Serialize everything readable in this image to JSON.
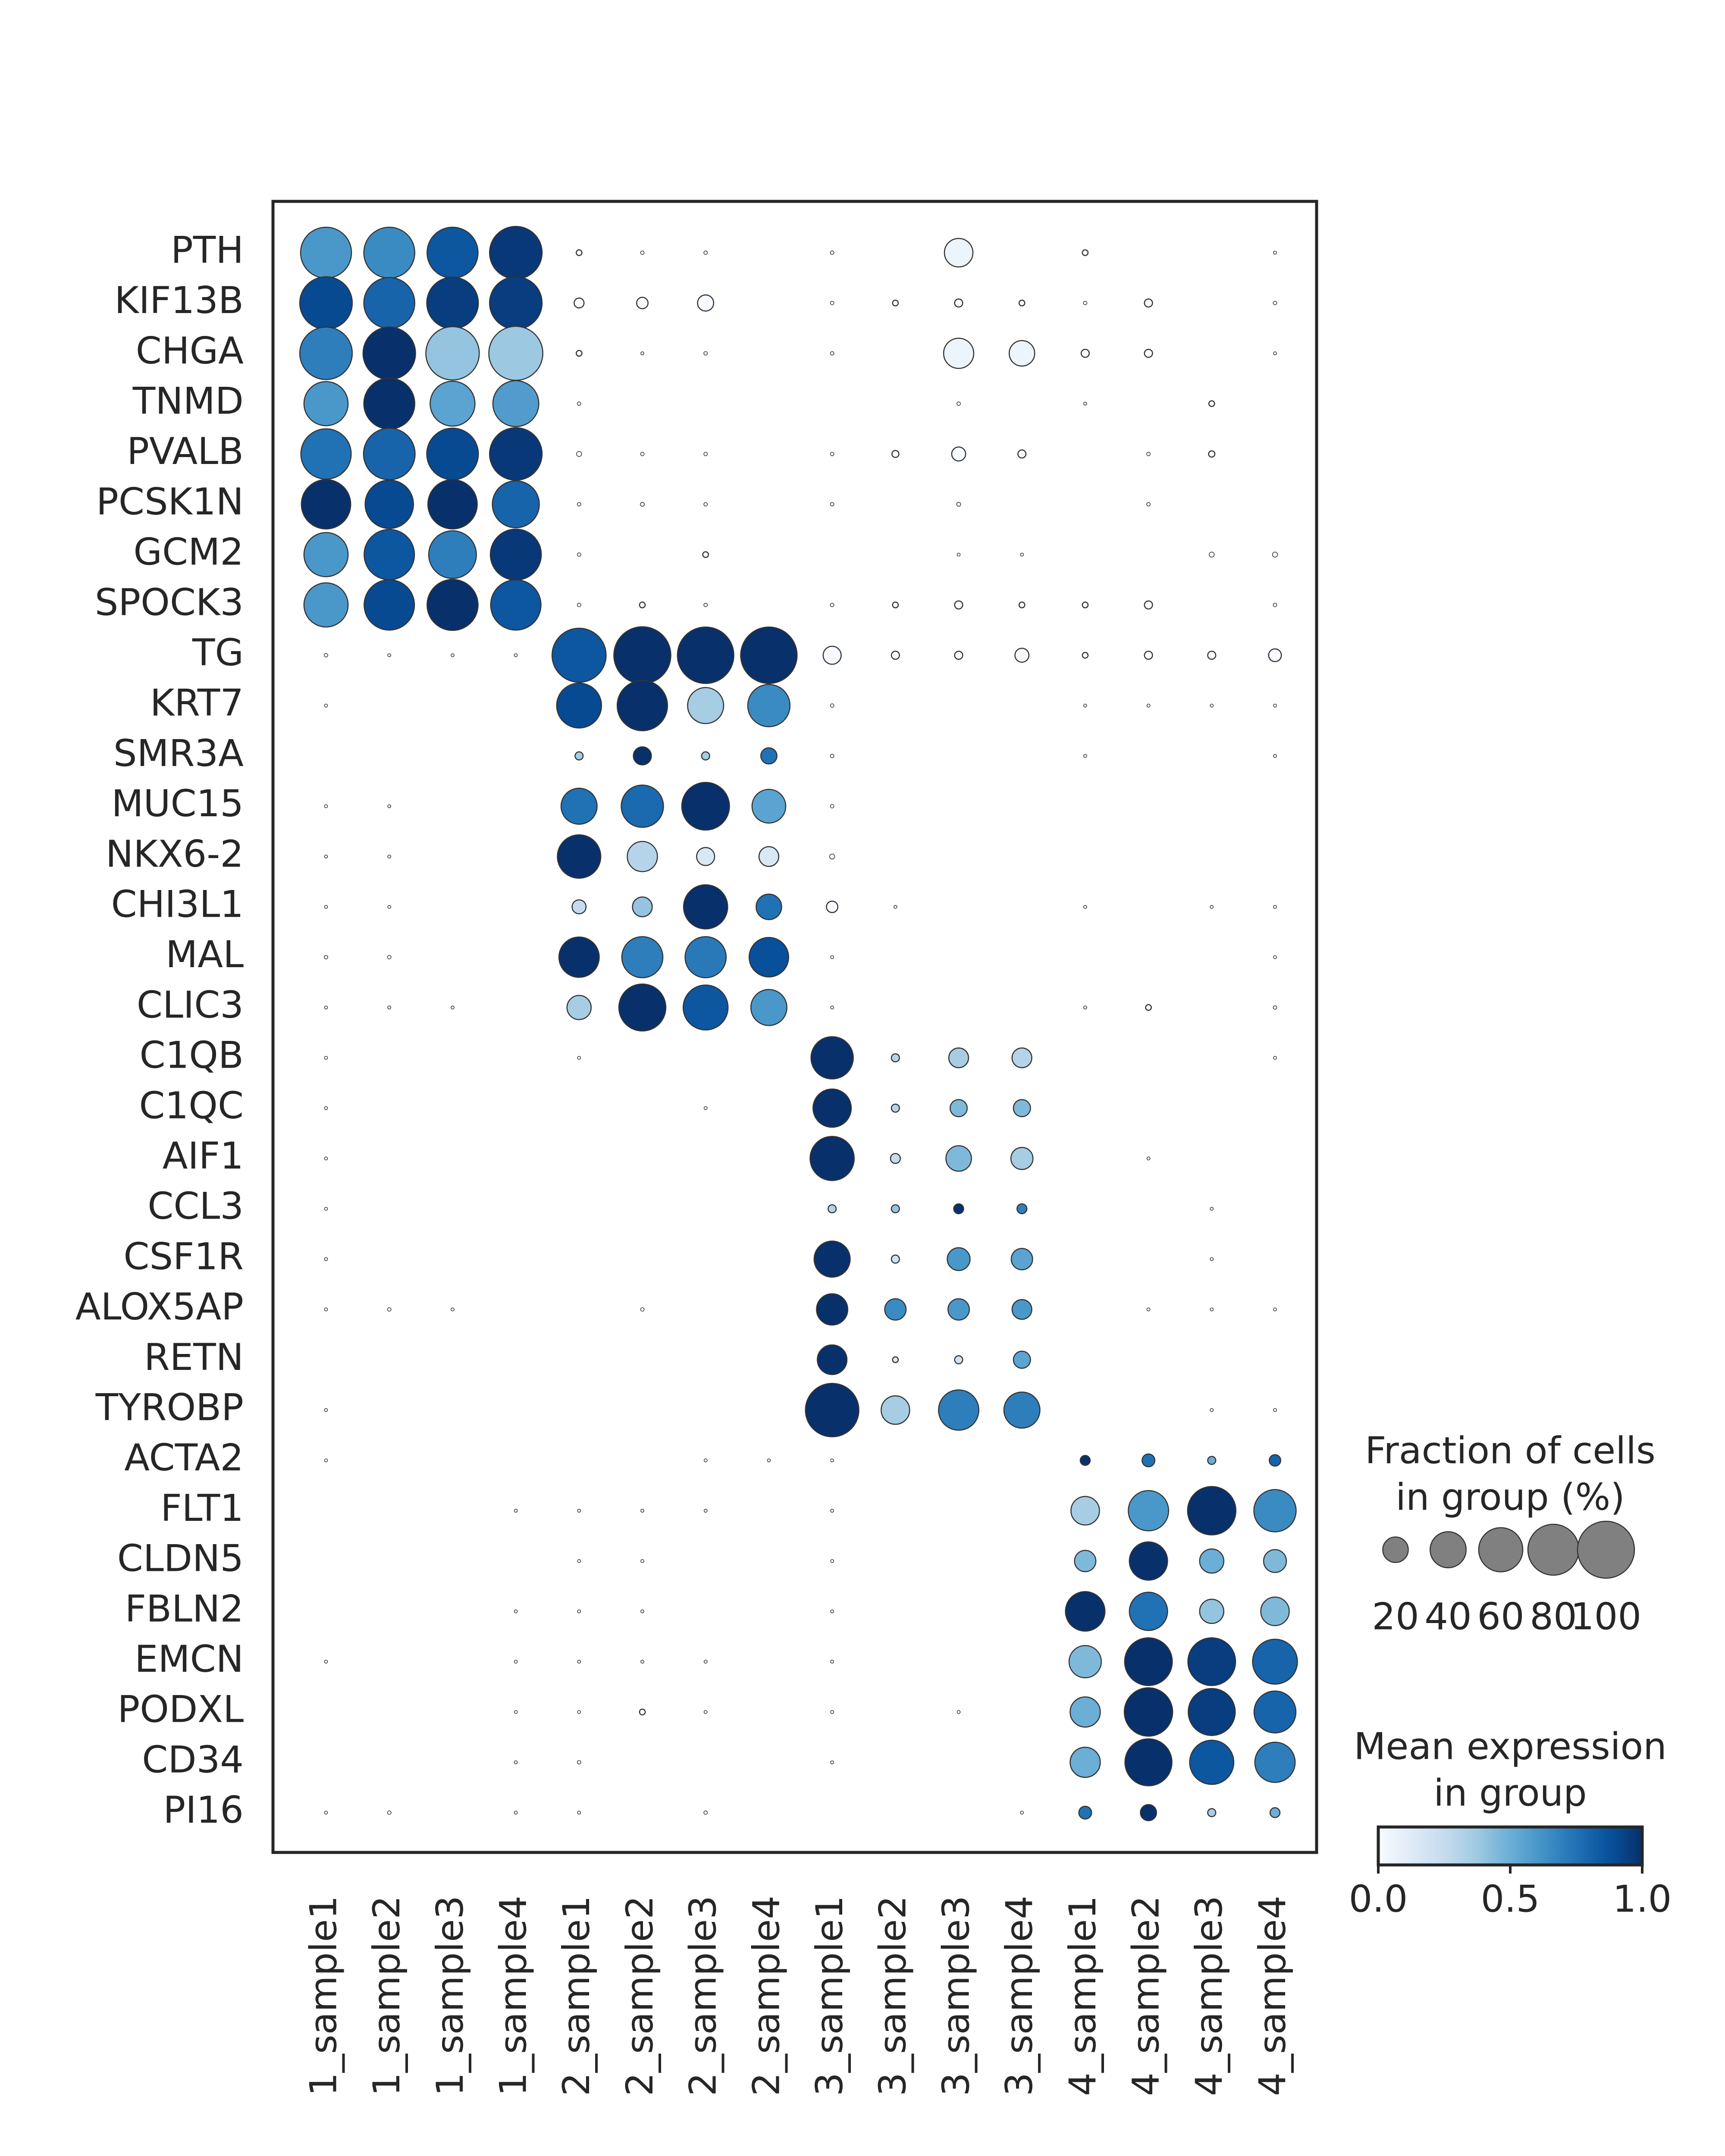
{
  "chart_data": {
    "type": "dotplot",
    "title": "",
    "xlabel": "",
    "ylabel": "",
    "categories": [
      "1_sample1",
      "1_sample2",
      "1_sample3",
      "1_sample4",
      "2_sample1",
      "2_sample2",
      "2_sample3",
      "2_sample4",
      "3_sample1",
      "3_sample2",
      "3_sample3",
      "3_sample4",
      "4_sample1",
      "4_sample2",
      "4_sample3",
      "4_sample4"
    ],
    "genes": [
      "PTH",
      "KIF13B",
      "CHGA",
      "TNMD",
      "PVALB",
      "PCSK1N",
      "GCM2",
      "SPOCK3",
      "TG",
      "KRT7",
      "SMR3A",
      "MUC15",
      "NKX6-2",
      "CHI3L1",
      "MAL",
      "CLIC3",
      "C1QB",
      "C1QC",
      "AIF1",
      "CCL3",
      "CSF1R",
      "ALOX5AP",
      "RETN",
      "TYROBP",
      "ACTA2",
      "FLT1",
      "CLDN5",
      "FBLN2",
      "EMCN",
      "PODXL",
      "CD34",
      "PI16"
    ],
    "fraction": [
      [
        80,
        80,
        80,
        85,
        1,
        0.4,
        0.4,
        0,
        0.4,
        0,
        25,
        0,
        1,
        0,
        0,
        0.3
      ],
      [
        85,
        80,
        82,
        85,
        3,
        4,
        8,
        0,
        0.4,
        1,
        2,
        1,
        0.4,
        2,
        0,
        0.4
      ],
      [
        85,
        85,
        88,
        90,
        1,
        0.3,
        0.4,
        0,
        0.4,
        0,
        28,
        20,
        2,
        2,
        0,
        0.3
      ],
      [
        60,
        80,
        62,
        65,
        0.4,
        0,
        0,
        0,
        0,
        0,
        0.4,
        0,
        0.3,
        0,
        1,
        0
      ],
      [
        78,
        82,
        82,
        85,
        0.8,
        0.4,
        0.4,
        0,
        0.4,
        1.5,
        6,
        2,
        0,
        0.4,
        1.2,
        0
      ],
      [
        75,
        72,
        75,
        68,
        0.4,
        0.5,
        0.4,
        0,
        0.4,
        0,
        0.5,
        0,
        0,
        0.4,
        0,
        0
      ],
      [
        60,
        78,
        70,
        80,
        0.4,
        0,
        1,
        0,
        0,
        0,
        0.3,
        0.3,
        0,
        0,
        0.8,
        0.8
      ],
      [
        60,
        78,
        80,
        78,
        0.4,
        1,
        0.4,
        0,
        0.4,
        1,
        2,
        1,
        1,
        2,
        0,
        0.4
      ],
      [
        0.4,
        0.3,
        0.3,
        0.3,
        90,
        100,
        98,
        98,
        10,
        2,
        2,
        6,
        1,
        2,
        2,
        5
      ],
      [
        0.3,
        0,
        0,
        0,
        62,
        78,
        40,
        55,
        0.4,
        0,
        0,
        0,
        0.3,
        0.3,
        0.3,
        0.3
      ],
      [
        0,
        0,
        0,
        0,
        2,
        10,
        2,
        8,
        0.4,
        0,
        0,
        0,
        0.3,
        0,
        0,
        0.3
      ],
      [
        0.3,
        0.3,
        0,
        0,
        40,
        55,
        70,
        35,
        0.4,
        0,
        0,
        0,
        0,
        0,
        0,
        0
      ],
      [
        0.3,
        0.3,
        0,
        0,
        58,
        28,
        10,
        12,
        0.8,
        0,
        0,
        0,
        0,
        0,
        0,
        0
      ],
      [
        0.3,
        0.3,
        0,
        0,
        6,
        12,
        60,
        20,
        4,
        0.3,
        0,
        0,
        0.3,
        0,
        0.3,
        0.3
      ],
      [
        0.4,
        0.4,
        0,
        0,
        50,
        52,
        52,
        48,
        0.3,
        0,
        0,
        0,
        0,
        0,
        0,
        0.3
      ],
      [
        0.3,
        0.3,
        0.3,
        0,
        18,
        68,
        62,
        40,
        0.3,
        0,
        0,
        0,
        0.3,
        1,
        0,
        0.4
      ],
      [
        0.3,
        0,
        0,
        0,
        0.3,
        0,
        0,
        0,
        55,
        2,
        12,
        12,
        0,
        0,
        0,
        0.3
      ],
      [
        0.3,
        0,
        0,
        0,
        0,
        0,
        0.3,
        0,
        45,
        2,
        9,
        9,
        0,
        0,
        0,
        0
      ],
      [
        0.3,
        0,
        0,
        0,
        0,
        0,
        0,
        0,
        60,
        3,
        20,
        15,
        0,
        0.3,
        0,
        0
      ],
      [
        0.3,
        0,
        0,
        0,
        0,
        0,
        0,
        0,
        2,
        2,
        3,
        3,
        0,
        0,
        0.3,
        0
      ],
      [
        0.3,
        0,
        0,
        0,
        0,
        0,
        0,
        0,
        40,
        2,
        16,
        14,
        0,
        0,
        0.3,
        0
      ],
      [
        0.3,
        0.4,
        0.3,
        0,
        0,
        0.4,
        0,
        0,
        30,
        14,
        14,
        12,
        0,
        0.3,
        0.3,
        0.3
      ],
      [
        0,
        0,
        0,
        0,
        0,
        0,
        0,
        0,
        27,
        1,
        2,
        9,
        0,
        0,
        0,
        0
      ],
      [
        0.3,
        0,
        0,
        0,
        0,
        0,
        0,
        0,
        88,
        25,
        50,
        40,
        0,
        0,
        0.3,
        0.3
      ],
      [
        0.3,
        0,
        0,
        0,
        0,
        0,
        0.3,
        0.3,
        0.3,
        0,
        0,
        0,
        3,
        5,
        2,
        4
      ],
      [
        0,
        0,
        0,
        0.3,
        0.3,
        0.3,
        0.3,
        0,
        0.3,
        0,
        0,
        0,
        25,
        50,
        72,
        55
      ],
      [
        0,
        0,
        0,
        0,
        0.3,
        0.3,
        0,
        0,
        0.3,
        0,
        0,
        0,
        14,
        45,
        18,
        16
      ],
      [
        0,
        0,
        0,
        0.3,
        0.3,
        0.3,
        0,
        0,
        0.3,
        0,
        0,
        0,
        48,
        45,
        18,
        25
      ],
      [
        0.3,
        0,
        0,
        0.3,
        0.3,
        0.3,
        0.3,
        0,
        0.3,
        0,
        0,
        0,
        32,
        70,
        70,
        62
      ],
      [
        0,
        0,
        0,
        0.3,
        0.3,
        1,
        0.3,
        0,
        0.3,
        0,
        0.3,
        0,
        28,
        72,
        68,
        54
      ],
      [
        0,
        0,
        0,
        0.3,
        0.4,
        0,
        0,
        0,
        0.3,
        0,
        0,
        0,
        28,
        68,
        60,
        50
      ],
      [
        0.3,
        0.4,
        0,
        0.3,
        0.3,
        0,
        0.4,
        0,
        0,
        0,
        0,
        0.3,
        5,
        8,
        2,
        3
      ]
    ],
    "mean_expression": [
      [
        0.6,
        0.65,
        0.85,
        0.97,
        0,
        0,
        0,
        0,
        0,
        0,
        0.05,
        0,
        0,
        0,
        0,
        0
      ],
      [
        0.9,
        0.8,
        0.95,
        0.95,
        0,
        0,
        0,
        0,
        0,
        0,
        0,
        0,
        0,
        0,
        0,
        0
      ],
      [
        0.7,
        1.0,
        0.4,
        0.38,
        0,
        0,
        0,
        0,
        0,
        0,
        0.05,
        0.05,
        0,
        0,
        0,
        0
      ],
      [
        0.6,
        1.0,
        0.55,
        0.58,
        0,
        0,
        0,
        0,
        0,
        0,
        0,
        0,
        0,
        0,
        0,
        0
      ],
      [
        0.75,
        0.8,
        0.9,
        0.97,
        0,
        0,
        0,
        0,
        0,
        0,
        0,
        0,
        0,
        0,
        0,
        0
      ],
      [
        1.0,
        0.9,
        1.0,
        0.8,
        0,
        0,
        0,
        0,
        0,
        0,
        0,
        0,
        0,
        0,
        0,
        0
      ],
      [
        0.6,
        0.85,
        0.7,
        0.97,
        0,
        0,
        0,
        0,
        0,
        0,
        0,
        0,
        0,
        0,
        0,
        0
      ],
      [
        0.6,
        0.9,
        1.0,
        0.85,
        0,
        0,
        0,
        0,
        0,
        0,
        0,
        0,
        0,
        0,
        0,
        0
      ],
      [
        0,
        0,
        0,
        0,
        0.85,
        1.0,
        1.0,
        1.0,
        0,
        0,
        0,
        0,
        0,
        0,
        0,
        0
      ],
      [
        0,
        0,
        0,
        0,
        0.9,
        1.0,
        0.35,
        0.65,
        0,
        0,
        0,
        0,
        0,
        0,
        0,
        0
      ],
      [
        0,
        0,
        0,
        0,
        0.35,
        1.0,
        0.35,
        0.75,
        0,
        0,
        0,
        0,
        0,
        0,
        0,
        0
      ],
      [
        0,
        0,
        0,
        0,
        0.75,
        0.78,
        1.0,
        0.55,
        0,
        0,
        0,
        0,
        0,
        0,
        0,
        0
      ],
      [
        0,
        0,
        0,
        0,
        1.0,
        0.3,
        0.15,
        0.15,
        0,
        0,
        0,
        0,
        0,
        0,
        0,
        0
      ],
      [
        0,
        0,
        0,
        0,
        0.25,
        0.4,
        1.0,
        0.75,
        0,
        0,
        0,
        0,
        0,
        0,
        0,
        0
      ],
      [
        0,
        0,
        0,
        0,
        1.0,
        0.7,
        0.72,
        0.88,
        0,
        0,
        0,
        0,
        0,
        0,
        0,
        0
      ],
      [
        0,
        0,
        0,
        0,
        0.35,
        1.0,
        0.85,
        0.6,
        0,
        0,
        0,
        0,
        0,
        0,
        0,
        0
      ],
      [
        0,
        0,
        0,
        0,
        0,
        0,
        0,
        0,
        1.0,
        0.3,
        0.35,
        0.3,
        0,
        0,
        0,
        0
      ],
      [
        0,
        0,
        0,
        0,
        0,
        0,
        0,
        0,
        1.0,
        0.3,
        0.45,
        0.45,
        0,
        0,
        0,
        0
      ],
      [
        0,
        0,
        0,
        0,
        0,
        0,
        0,
        0,
        1.0,
        0.25,
        0.45,
        0.35,
        0,
        0,
        0,
        0
      ],
      [
        0,
        0,
        0,
        0,
        0,
        0,
        0,
        0,
        0.3,
        0.4,
        1.0,
        0.7,
        0,
        0,
        0,
        0
      ],
      [
        0,
        0,
        0,
        0,
        0,
        0,
        0,
        0,
        1.0,
        0.2,
        0.6,
        0.55,
        0,
        0,
        0,
        0
      ],
      [
        0,
        0,
        0,
        0,
        0,
        0,
        0,
        0,
        1.0,
        0.65,
        0.6,
        0.6,
        0,
        0,
        0,
        0
      ],
      [
        0,
        0,
        0,
        0,
        0,
        0,
        0,
        0,
        1.0,
        0.15,
        0.2,
        0.55,
        0,
        0,
        0,
        0
      ],
      [
        0,
        0,
        0,
        0,
        0,
        0,
        0,
        0,
        1.0,
        0.35,
        0.7,
        0.7,
        0,
        0,
        0,
        0
      ],
      [
        0,
        0,
        0,
        0,
        0,
        0,
        0,
        0,
        0,
        0,
        0,
        0,
        1.0,
        0.75,
        0.5,
        0.8
      ],
      [
        0,
        0,
        0,
        0,
        0,
        0,
        0,
        0,
        0,
        0,
        0,
        0,
        0.35,
        0.6,
        1.0,
        0.65
      ],
      [
        0,
        0,
        0,
        0,
        0,
        0,
        0,
        0,
        0,
        0,
        0,
        0,
        0.45,
        1.0,
        0.5,
        0.45
      ],
      [
        0,
        0,
        0,
        0,
        0,
        0,
        0,
        0,
        0,
        0,
        0,
        0,
        1.0,
        0.75,
        0.4,
        0.45
      ],
      [
        0,
        0,
        0,
        0,
        0,
        0,
        0,
        0,
        0,
        0,
        0,
        0,
        0.45,
        1.0,
        0.95,
        0.8
      ],
      [
        0,
        0,
        0,
        0,
        0,
        0,
        0,
        0,
        0,
        0,
        0,
        0,
        0.5,
        1.0,
        0.95,
        0.8
      ],
      [
        0,
        0,
        0,
        0,
        0,
        0,
        0,
        0,
        0,
        0,
        0,
        0,
        0.5,
        1.0,
        0.85,
        0.7
      ],
      [
        0,
        0,
        0,
        0,
        0,
        0,
        0,
        0,
        0,
        0,
        0,
        0,
        0.75,
        1.0,
        0.35,
        0.5
      ]
    ],
    "size_legend": {
      "title_line1": "Fraction of cells",
      "title_line2": "in group (%)",
      "values": [
        20,
        40,
        60,
        80,
        100
      ],
      "labels": [
        "20",
        "40",
        "60",
        "80",
        "100"
      ]
    },
    "color_legend": {
      "title_line1": "Mean expression",
      "title_line2": "in group",
      "colormap": "Blues",
      "range": [
        0.0,
        1.0
      ],
      "ticks": [
        "0.0",
        "0.5",
        "1.0"
      ]
    },
    "grid": false,
    "colors": {
      "min": "#f7fbff",
      "max": "#08306b",
      "dot_edge": "#333333",
      "size_legend_dot": "#808080"
    }
  }
}
